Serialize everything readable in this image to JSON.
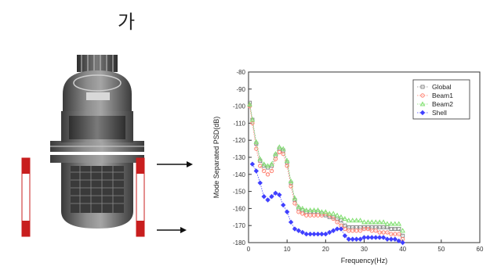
{
  "header": {
    "text": "가"
  },
  "colors": {
    "global": "#8a8a8a",
    "beam1": "#ff8070",
    "beam2": "#80e070",
    "shell": "#4040ff",
    "vessel_body": "#5c5c5c",
    "red_bar": "#c81e1e"
  },
  "icons": [
    "reactor-vessel-icon",
    "arrow-right-icon"
  ],
  "chart_data": {
    "type": "scatter",
    "xlabel": "Frequency(Hz)",
    "ylabel": "Mode Separated PSD(dB)",
    "xlim": [
      0,
      60
    ],
    "ylim": [
      -180,
      -80
    ],
    "x_ticks": [
      0,
      10,
      20,
      30,
      40,
      50,
      60
    ],
    "y_ticks": [
      -80,
      -90,
      -100,
      -110,
      -120,
      -130,
      -140,
      -150,
      -160,
      -170,
      -180
    ],
    "x_tick_labels": [
      "0",
      "10",
      "20",
      "30",
      "40",
      "50",
      "60"
    ],
    "y_tick_labels": [
      "-80",
      "-90",
      "-100",
      "-110",
      "-120",
      "-130",
      "-140",
      "-150",
      "-160",
      "-170",
      "-180"
    ],
    "legend_position": "top-right",
    "grid": false,
    "series": [
      {
        "name": "Global",
        "x": [
          0.3,
          1,
          2,
          3,
          4,
          5,
          6,
          7,
          8,
          9,
          10,
          11,
          12,
          13,
          14,
          15,
          16,
          17,
          18,
          19,
          20,
          21,
          22,
          23,
          24,
          25,
          26,
          27,
          28,
          29,
          30,
          31,
          32,
          33,
          34,
          35,
          36,
          37,
          38,
          39,
          40
        ],
        "y": [
          -98,
          -108,
          -122,
          -132,
          -135,
          -136,
          -135,
          -129,
          -125,
          -126,
          -133,
          -145,
          -155,
          -160,
          -161,
          -162,
          -162,
          -162,
          -162,
          -163,
          -164,
          -165,
          -165,
          -166,
          -167,
          -170,
          -171,
          -171,
          -171,
          -171,
          -171,
          -171,
          -171,
          -171,
          -171,
          -171,
          -171,
          -172,
          -172,
          -172,
          -176
        ]
      },
      {
        "name": "Beam1",
        "x": [
          0.3,
          1,
          2,
          3,
          4,
          5,
          6,
          7,
          8,
          9,
          10,
          11,
          12,
          13,
          14,
          15,
          16,
          17,
          18,
          19,
          20,
          21,
          22,
          23,
          24,
          25,
          26,
          27,
          28,
          29,
          30,
          31,
          32,
          33,
          34,
          35,
          36,
          37,
          38,
          39,
          40
        ],
        "y": [
          -100,
          -110,
          -125,
          -135,
          -138,
          -140,
          -138,
          -131,
          -127,
          -128,
          -135,
          -147,
          -157,
          -162,
          -163,
          -164,
          -164,
          -164,
          -164,
          -164,
          -163,
          -164,
          -166,
          -168,
          -170,
          -172,
          -173,
          -173,
          -173,
          -173,
          -172,
          -172,
          -173,
          -173,
          -174,
          -174,
          -174,
          -175,
          -175,
          -175,
          -178
        ]
      },
      {
        "name": "Beam2",
        "x": [
          0.3,
          1,
          2,
          3,
          4,
          5,
          6,
          7,
          8,
          9,
          10,
          11,
          12,
          13,
          14,
          15,
          16,
          17,
          18,
          19,
          20,
          21,
          22,
          23,
          24,
          25,
          26,
          27,
          28,
          29,
          30,
          31,
          32,
          33,
          34,
          35,
          36,
          37,
          38,
          39,
          40
        ],
        "y": [
          -99,
          -108,
          -121,
          -131,
          -134,
          -135,
          -134,
          -128,
          -124,
          -125,
          -132,
          -144,
          -154,
          -159,
          -160,
          -161,
          -161,
          -161,
          -161,
          -162,
          -162,
          -163,
          -163,
          -164,
          -165,
          -166,
          -167,
          -167,
          -167,
          -167,
          -168,
          -168,
          -168,
          -168,
          -168,
          -168,
          -169,
          -169,
          -169,
          -169,
          -173
        ]
      },
      {
        "name": "Shell",
        "x": [
          1,
          2,
          3,
          4,
          5,
          6,
          7,
          8,
          9,
          10,
          11,
          12,
          13,
          14,
          15,
          16,
          17,
          18,
          19,
          20,
          21,
          22,
          23,
          24,
          25,
          26,
          27,
          28,
          29,
          30,
          31,
          32,
          33,
          34,
          35,
          36,
          37,
          38,
          39,
          40
        ],
        "y": [
          -134,
          -138,
          -145,
          -153,
          -155,
          -153,
          -151,
          -152,
          -158,
          -162,
          -168,
          -172,
          -173,
          -174,
          -175,
          -175,
          -175,
          -175,
          -175,
          -175,
          -174,
          -173,
          -172,
          -172,
          -176,
          -178,
          -178,
          -178,
          -178,
          -177,
          -177,
          -177,
          -177,
          -177,
          -177,
          -178,
          -178,
          -178,
          -179,
          -180
        ]
      }
    ]
  }
}
